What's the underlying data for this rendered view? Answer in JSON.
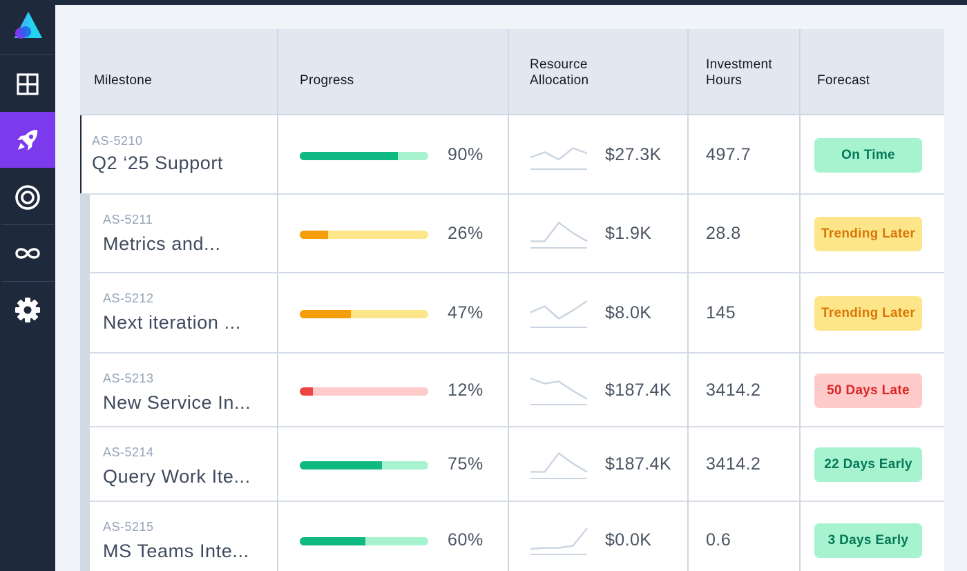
{
  "colors": {
    "sidebar_bg": "#1e293b",
    "active_nav": "#7c3aed",
    "progress_green": "#10b981",
    "progress_green_track": "#a7f3d0",
    "progress_orange": "#f59e0b",
    "progress_yellow_track": "#fde68a",
    "progress_red": "#ef4444",
    "progress_red_track": "#fecaca"
  },
  "sidebar": {
    "logo": "triangle-logo-icon",
    "items": [
      {
        "icon": "grid-icon",
        "active": false
      },
      {
        "icon": "rocket-icon",
        "active": true
      },
      {
        "icon": "target-icon",
        "active": false
      },
      {
        "icon": "infinity-icon",
        "active": false
      },
      {
        "icon": "gear-icon",
        "active": false
      }
    ]
  },
  "table": {
    "headers": {
      "milestone": "Milestone",
      "progress": "Progress",
      "resource_line1": "Resource",
      "resource_line2": "Allocation",
      "investment_line1": "Investment",
      "investment_line2": "Hours",
      "forecast": "Forecast"
    },
    "rows": [
      {
        "id": "AS-5210",
        "name": "Q2 ‘25 Support",
        "progress": 90,
        "progress_label": "90%",
        "progress_color": "green",
        "amount": "$27.3K",
        "hours": "497.7",
        "forecast": "On Time",
        "forecast_status": "green",
        "sparkline": [
          0.3,
          0.55,
          0.2,
          0.75,
          0.5
        ]
      },
      {
        "id": "AS-5211",
        "name": "Metrics and...",
        "progress": 26,
        "progress_label": "26%",
        "progress_color": "orange",
        "amount": "$1.9K",
        "hours": "28.8",
        "forecast": "Trending Later",
        "forecast_status": "yellow",
        "sparkline": [
          0.05,
          0.05,
          0.95,
          0.45,
          0.05
        ]
      },
      {
        "id": "AS-5212",
        "name": "Next iteration ...",
        "progress": 47,
        "progress_label": "47%",
        "progress_color": "orange",
        "amount": "$8.0K",
        "hours": "145",
        "forecast": "Trending Later",
        "forecast_status": "yellow",
        "sparkline": [
          0.45,
          0.75,
          0.15,
          0.55,
          1.0
        ]
      },
      {
        "id": "AS-5213",
        "name": "New Service In...",
        "progress": 12,
        "progress_label": "12%",
        "progress_color": "red",
        "amount": "$187.4K",
        "hours": "3414.2",
        "forecast": "50 Days Late",
        "forecast_status": "red",
        "sparkline": [
          1.0,
          0.75,
          0.85,
          0.4,
          0.0
        ]
      },
      {
        "id": "AS-5214",
        "name": "Query Work Ite...",
        "progress": 75,
        "progress_label": "75%",
        "progress_color": "green",
        "amount": "$187.4K",
        "hours": "3414.2",
        "forecast": "22 Days Early",
        "forecast_status": "green",
        "sparkline": [
          0.05,
          0.05,
          0.95,
          0.45,
          0.05
        ]
      },
      {
        "id": "AS-5215",
        "name": "MS Teams Inte...",
        "progress": 60,
        "progress_label": "60%",
        "progress_color": "green",
        "amount": "$0.0K",
        "hours": "0.6",
        "forecast": "3 Days Early",
        "forecast_status": "green",
        "sparkline": [
          0.0,
          0.05,
          0.05,
          0.15,
          1.0
        ]
      }
    ]
  }
}
